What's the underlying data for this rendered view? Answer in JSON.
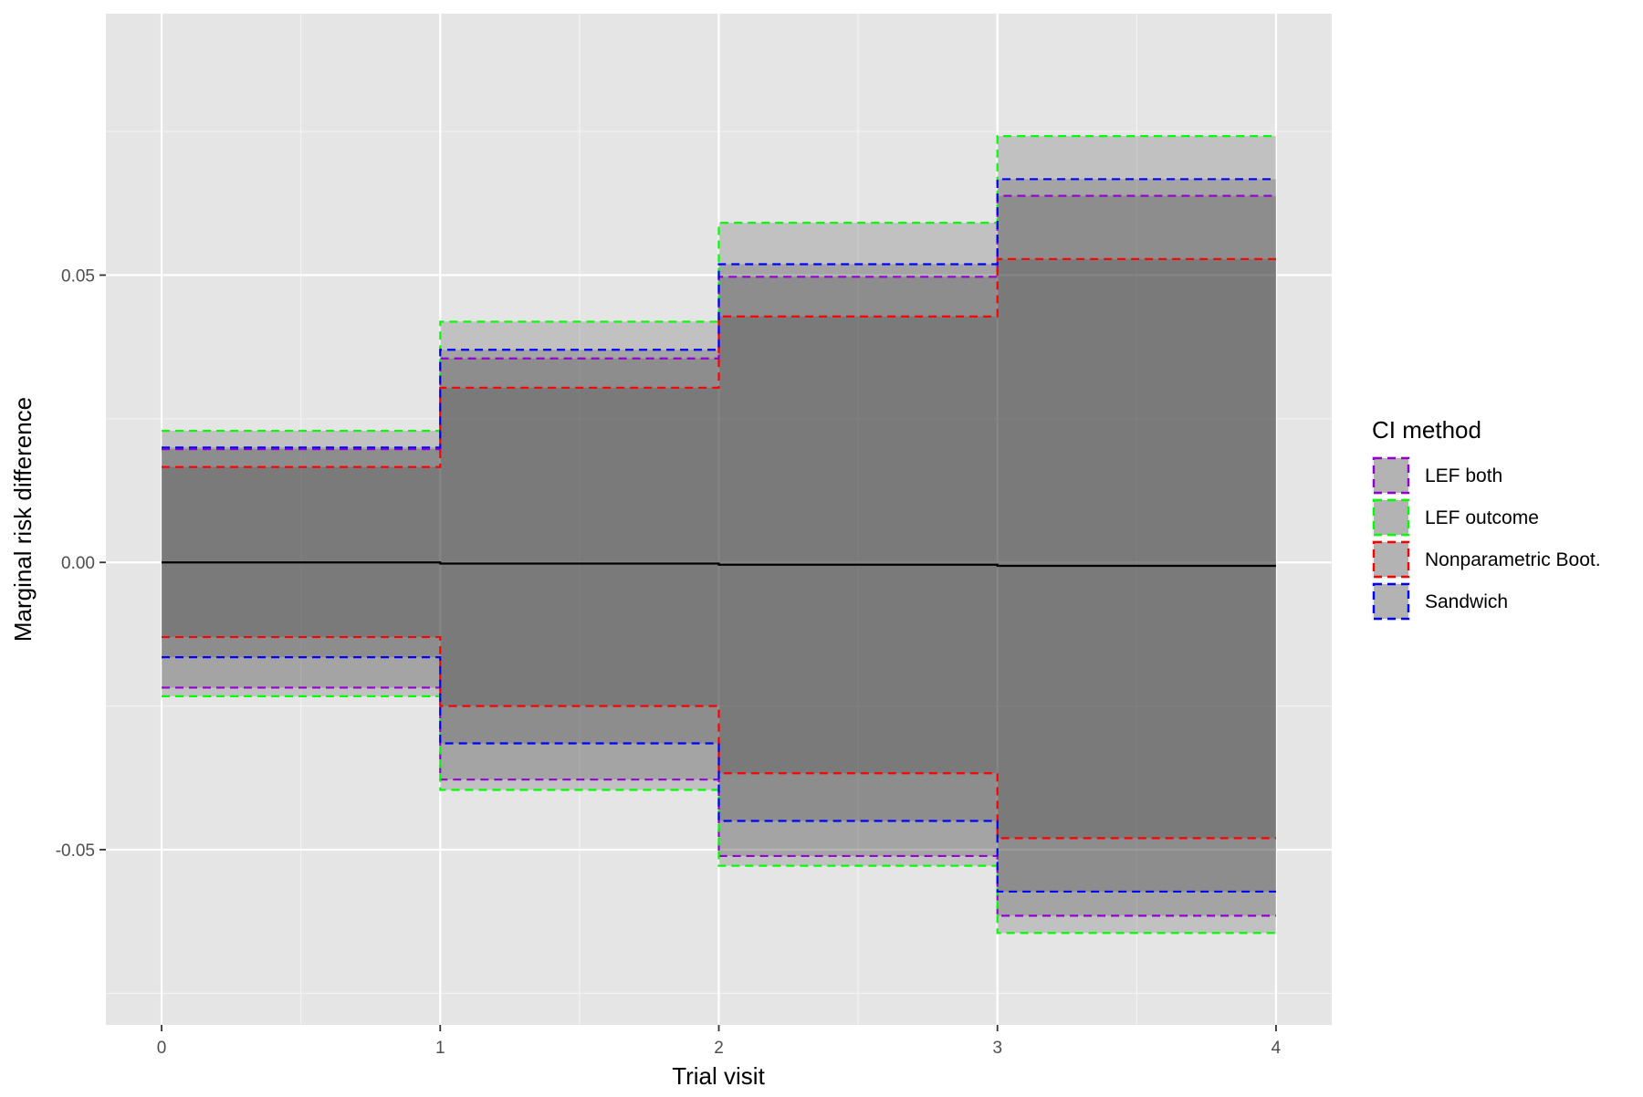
{
  "chart_data": {
    "type": "line",
    "title": "",
    "xlabel": "Trial visit",
    "ylabel": "Marginal risk difference",
    "xlim": [
      -0.2,
      4.2
    ],
    "ylim": [
      -0.0805,
      0.0955
    ],
    "x_ticks": [
      0,
      1,
      2,
      3,
      4
    ],
    "x_tick_labels": [
      "0",
      "1",
      "2",
      "3",
      "4"
    ],
    "y_ticks": [
      -0.05,
      0,
      0.05
    ],
    "y_tick_labels": [
      "-0.05",
      "0.00",
      "0.05"
    ],
    "grid": true,
    "step": true,
    "x": [
      0,
      1,
      2,
      3,
      4
    ],
    "estimate": [
      0.0,
      -0.0002,
      -0.0004,
      -0.0006,
      -0.0006
    ],
    "legend_title": "CI method",
    "legend_position": "right",
    "series": [
      {
        "name": "LEF both",
        "color": "#9400D3",
        "upper": [
          0.0197,
          0.0355,
          0.0497,
          0.0638,
          0.0638
        ],
        "lower": [
          -0.0218,
          -0.0378,
          -0.0511,
          -0.0615,
          -0.0615
        ]
      },
      {
        "name": "LEF outcome",
        "color": "#00FF00",
        "upper": [
          0.0229,
          0.0419,
          0.0591,
          0.0742,
          0.0742
        ],
        "lower": [
          -0.0233,
          -0.0396,
          -0.0528,
          -0.0645,
          -0.0645
        ]
      },
      {
        "name": "Nonparametric Boot.",
        "color": "#FF0000",
        "upper": [
          0.0166,
          0.0304,
          0.0428,
          0.0528,
          0.0528
        ],
        "lower": [
          -0.013,
          -0.025,
          -0.0367,
          -0.048,
          -0.048
        ]
      },
      {
        "name": "Sandwich",
        "color": "#0000FF",
        "upper": [
          0.02,
          0.037,
          0.0519,
          0.0667,
          0.0667
        ],
        "lower": [
          -0.0165,
          -0.0315,
          -0.045,
          -0.0573,
          -0.0573
        ]
      }
    ]
  }
}
